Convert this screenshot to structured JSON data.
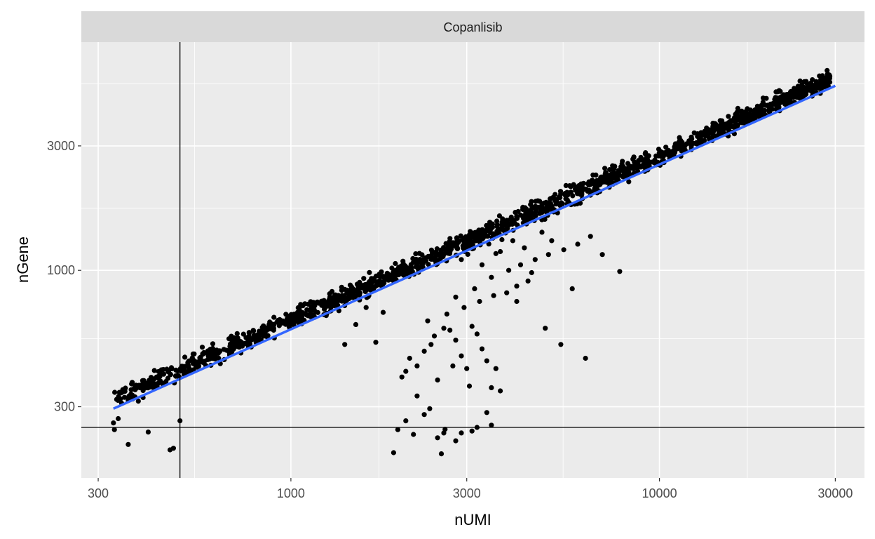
{
  "chart_data": {
    "type": "scatter",
    "panel_title": "Copanlisib",
    "xlabel": "nUMI",
    "ylabel": "nGene",
    "x_scale": "log10",
    "y_scale": "log10",
    "xlim": [
      270,
      36000
    ],
    "ylim": [
      160,
      7500
    ],
    "x_ticks": [
      300,
      1000,
      3000,
      10000,
      30000
    ],
    "x_tick_labels": [
      "300",
      "1000",
      "3000",
      "10000",
      "30000"
    ],
    "y_ticks": [
      300,
      1000,
      3000
    ],
    "y_tick_labels": [
      "300",
      "1000",
      "3000"
    ],
    "grid": true,
    "reference_lines": {
      "vertical_x": 500,
      "horizontal_y": 250
    },
    "colors": {
      "panel_bg": "#ebebeb",
      "strip_bg": "#d9d9d9",
      "points": "#000000",
      "fit_line": "#3366ff",
      "grid": "#ffffff",
      "reference": "#000000"
    },
    "fit_line": {
      "x": [
        330,
        30000
      ],
      "y": [
        295,
        5100
      ]
    },
    "main_band": {
      "x_start": 330,
      "x_end": 29000,
      "n_points": 1600,
      "seed": 7
    },
    "outliers": [
      {
        "x": 330,
        "y": 260
      },
      {
        "x": 332,
        "y": 245
      },
      {
        "x": 340,
        "y": 270
      },
      {
        "x": 362,
        "y": 215
      },
      {
        "x": 410,
        "y": 240
      },
      {
        "x": 470,
        "y": 205
      },
      {
        "x": 480,
        "y": 208
      },
      {
        "x": 500,
        "y": 265
      },
      {
        "x": 1900,
        "y": 200
      },
      {
        "x": 1950,
        "y": 245
      },
      {
        "x": 2050,
        "y": 265
      },
      {
        "x": 2150,
        "y": 235
      },
      {
        "x": 2300,
        "y": 280
      },
      {
        "x": 2380,
        "y": 295
      },
      {
        "x": 2500,
        "y": 228
      },
      {
        "x": 2560,
        "y": 198
      },
      {
        "x": 2600,
        "y": 238
      },
      {
        "x": 2620,
        "y": 246
      },
      {
        "x": 2800,
        "y": 222
      },
      {
        "x": 2900,
        "y": 238
      },
      {
        "x": 3100,
        "y": 242
      },
      {
        "x": 3200,
        "y": 250
      },
      {
        "x": 3400,
        "y": 285
      },
      {
        "x": 3500,
        "y": 255
      },
      {
        "x": 2000,
        "y": 390
      },
      {
        "x": 2050,
        "y": 410
      },
      {
        "x": 2100,
        "y": 460
      },
      {
        "x": 2200,
        "y": 430
      },
      {
        "x": 2300,
        "y": 490
      },
      {
        "x": 2400,
        "y": 520
      },
      {
        "x": 2500,
        "y": 380
      },
      {
        "x": 2600,
        "y": 600
      },
      {
        "x": 2700,
        "y": 590
      },
      {
        "x": 2800,
        "y": 540
      },
      {
        "x": 2900,
        "y": 470
      },
      {
        "x": 3000,
        "y": 420
      },
      {
        "x": 3100,
        "y": 610
      },
      {
        "x": 3200,
        "y": 570
      },
      {
        "x": 3300,
        "y": 500
      },
      {
        "x": 3400,
        "y": 450
      },
      {
        "x": 3500,
        "y": 355
      },
      {
        "x": 3600,
        "y": 420
      },
      {
        "x": 3700,
        "y": 345
      },
      {
        "x": 2200,
        "y": 330
      },
      {
        "x": 2450,
        "y": 560
      },
      {
        "x": 2750,
        "y": 430
      },
      {
        "x": 3050,
        "y": 360
      },
      {
        "x": 2350,
        "y": 640
      },
      {
        "x": 2650,
        "y": 680
      },
      {
        "x": 2950,
        "y": 720
      },
      {
        "x": 3250,
        "y": 760
      },
      {
        "x": 3550,
        "y": 800
      },
      {
        "x": 3850,
        "y": 820
      },
      {
        "x": 4100,
        "y": 870
      },
      {
        "x": 4400,
        "y": 910
      },
      {
        "x": 2800,
        "y": 790
      },
      {
        "x": 3150,
        "y": 850
      },
      {
        "x": 3500,
        "y": 940
      },
      {
        "x": 3900,
        "y": 1000
      },
      {
        "x": 4200,
        "y": 1050
      },
      {
        "x": 4600,
        "y": 1100
      },
      {
        "x": 5000,
        "y": 1150
      },
      {
        "x": 5500,
        "y": 1200
      },
      {
        "x": 4900,
        "y": 600
      },
      {
        "x": 5400,
        "y": 520
      },
      {
        "x": 5800,
        "y": 850
      },
      {
        "x": 6300,
        "y": 460
      },
      {
        "x": 7000,
        "y": 1150
      },
      {
        "x": 7800,
        "y": 990
      },
      {
        "x": 1700,
        "y": 530
      },
      {
        "x": 1500,
        "y": 620
      },
      {
        "x": 1600,
        "y": 720
      },
      {
        "x": 1780,
        "y": 690
      },
      {
        "x": 5100,
        "y": 1300
      },
      {
        "x": 6000,
        "y": 1260
      },
      {
        "x": 6500,
        "y": 1350
      },
      {
        "x": 3700,
        "y": 1180
      },
      {
        "x": 4000,
        "y": 1300
      },
      {
        "x": 4300,
        "y": 1220
      },
      {
        "x": 4800,
        "y": 1400
      },
      {
        "x": 1400,
        "y": 520
      },
      {
        "x": 1300,
        "y": 760
      },
      {
        "x": 1350,
        "y": 700
      },
      {
        "x": 3300,
        "y": 1050
      },
      {
        "x": 2900,
        "y": 1100
      },
      {
        "x": 3600,
        "y": 1160
      },
      {
        "x": 4100,
        "y": 760
      },
      {
        "x": 4500,
        "y": 980
      }
    ]
  }
}
